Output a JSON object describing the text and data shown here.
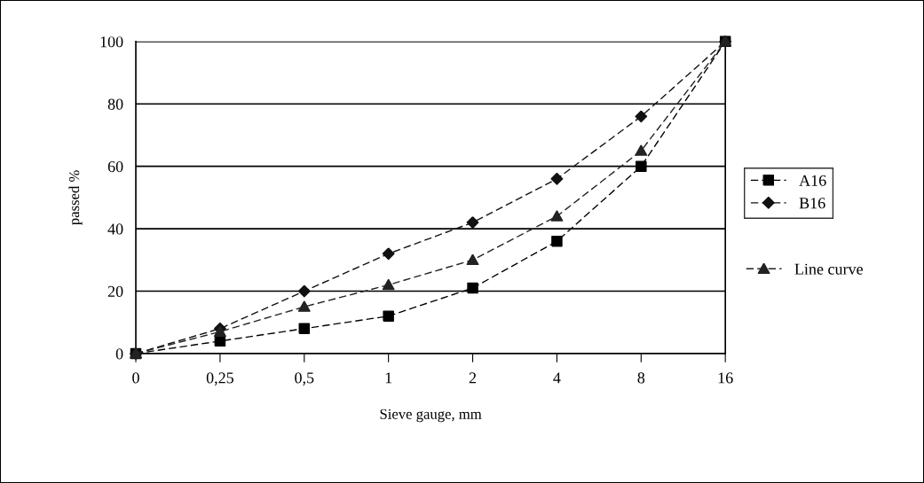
{
  "chart_data": {
    "type": "line",
    "xlabel": "Sieve gauge, mm",
    "ylabel": "passed %",
    "categories": [
      "0",
      "0,25",
      "0,5",
      "1",
      "2",
      "4",
      "8",
      "16"
    ],
    "series": [
      {
        "name": "A16",
        "color": "#000000",
        "marker": "square",
        "values": [
          0,
          4,
          8,
          12,
          21,
          36,
          60,
          100
        ]
      },
      {
        "name": "B16",
        "color": "#111111",
        "marker": "diamond",
        "values": [
          0,
          8,
          20,
          32,
          42,
          56,
          76,
          100
        ]
      },
      {
        "name": "Line curve",
        "color": "#222222",
        "marker": "triangle",
        "values": [
          0,
          7,
          15,
          22,
          30,
          44,
          65,
          100
        ]
      }
    ],
    "ylim": [
      0,
      100
    ],
    "yticks": [
      0,
      20,
      40,
      60,
      80,
      100
    ],
    "grid": "y",
    "legend": "right",
    "line_style": "dashed"
  }
}
